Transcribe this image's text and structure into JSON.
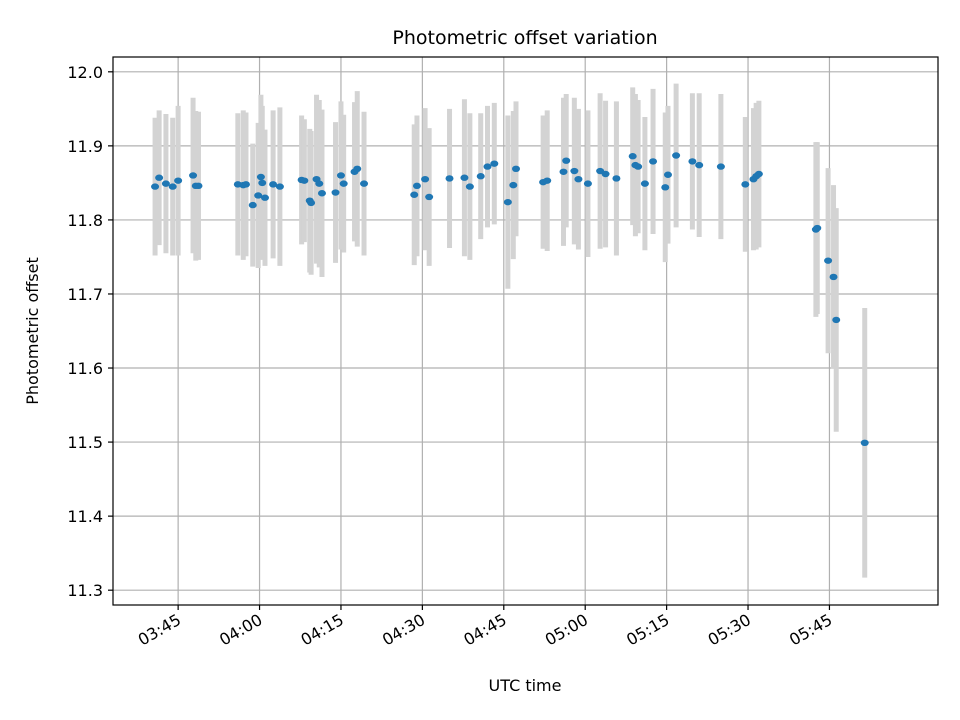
{
  "chart_data": {
    "type": "scatter",
    "title": "Photometric offset variation",
    "xlabel": "UTC time",
    "ylabel": "Photometric offset",
    "ylim": [
      11.28,
      12.02
    ],
    "y_ticks": [
      11.3,
      11.4,
      11.5,
      11.6,
      11.7,
      11.8,
      11.9,
      12.0
    ],
    "y_tick_labels": [
      "11.3",
      "11.4",
      "11.5",
      "11.6",
      "11.7",
      "11.8",
      "11.9",
      "12.0"
    ],
    "xlim": [
      "03:33:00",
      "06:05:00"
    ],
    "x_ticks": [
      "03:45",
      "04:00",
      "04:15",
      "04:30",
      "04:45",
      "05:00",
      "05:15",
      "05:30",
      "05:45"
    ],
    "grid": true,
    "colors": {
      "points": "#1f77b4",
      "errorbars": "#d3d3d3",
      "grid": "#b0b0b0"
    },
    "points": [
      {
        "t": "03:40:45",
        "y": 11.845,
        "err": 0.093
      },
      {
        "t": "03:41:30",
        "y": 11.857,
        "err": 0.091
      },
      {
        "t": "03:42:45",
        "y": 11.849,
        "err": 0.094
      },
      {
        "t": "03:44:00",
        "y": 11.845,
        "err": 0.093
      },
      {
        "t": "03:45:00",
        "y": 11.853,
        "err": 0.101
      },
      {
        "t": "03:47:45",
        "y": 11.86,
        "err": 0.105
      },
      {
        "t": "03:48:15",
        "y": 11.846,
        "err": 0.101
      },
      {
        "t": "03:48:45",
        "y": 11.846,
        "err": 0.1
      },
      {
        "t": "03:56:00",
        "y": 11.848,
        "err": 0.096
      },
      {
        "t": "03:57:00",
        "y": 11.847,
        "err": 0.101
      },
      {
        "t": "03:57:30",
        "y": 11.848,
        "err": 0.097
      },
      {
        "t": "03:58:45",
        "y": 11.82,
        "err": 0.083
      },
      {
        "t": "03:59:45",
        "y": 11.833,
        "err": 0.098
      },
      {
        "t": "04:00:15",
        "y": 11.858,
        "err": 0.111
      },
      {
        "t": "04:00:30",
        "y": 11.85,
        "err": 0.104
      },
      {
        "t": "04:01:00",
        "y": 11.83,
        "err": 0.092
      },
      {
        "t": "04:02:30",
        "y": 11.848,
        "err": 0.1
      },
      {
        "t": "04:03:45",
        "y": 11.845,
        "err": 0.107
      },
      {
        "t": "04:07:45",
        "y": 11.854,
        "err": 0.087
      },
      {
        "t": "04:08:15",
        "y": 11.853,
        "err": 0.083
      },
      {
        "t": "04:09:15",
        "y": 11.826,
        "err": 0.097
      },
      {
        "t": "04:09:30",
        "y": 11.823,
        "err": 0.097
      },
      {
        "t": "04:10:30",
        "y": 11.855,
        "err": 0.114
      },
      {
        "t": "04:11:00",
        "y": 11.849,
        "err": 0.113
      },
      {
        "t": "04:11:30",
        "y": 11.836,
        "err": 0.113
      },
      {
        "t": "04:14:00",
        "y": 11.837,
        "err": 0.095
      },
      {
        "t": "04:15:00",
        "y": 11.86,
        "err": 0.1
      },
      {
        "t": "04:15:30",
        "y": 11.849,
        "err": 0.093
      },
      {
        "t": "04:17:30",
        "y": 11.865,
        "err": 0.094
      },
      {
        "t": "04:18:00",
        "y": 11.869,
        "err": 0.105
      },
      {
        "t": "04:19:15",
        "y": 11.849,
        "err": 0.097
      },
      {
        "t": "04:28:30",
        "y": 11.834,
        "err": 0.095
      },
      {
        "t": "04:29:00",
        "y": 11.846,
        "err": 0.095
      },
      {
        "t": "04:30:30",
        "y": 11.855,
        "err": 0.096
      },
      {
        "t": "04:31:15",
        "y": 11.831,
        "err": 0.093
      },
      {
        "t": "04:35:00",
        "y": 11.856,
        "err": 0.094
      },
      {
        "t": "04:37:45",
        "y": 11.857,
        "err": 0.106
      },
      {
        "t": "04:38:45",
        "y": 11.845,
        "err": 0.099
      },
      {
        "t": "04:40:45",
        "y": 11.859,
        "err": 0.085
      },
      {
        "t": "04:42:00",
        "y": 11.872,
        "err": 0.082
      },
      {
        "t": "04:43:15",
        "y": 11.876,
        "err": 0.082
      },
      {
        "t": "04:45:45",
        "y": 11.824,
        "err": 0.117
      },
      {
        "t": "04:46:45",
        "y": 11.847,
        "err": 0.1
      },
      {
        "t": "04:47:15",
        "y": 11.869,
        "err": 0.091
      },
      {
        "t": "04:52:15",
        "y": 11.851,
        "err": 0.09
      },
      {
        "t": "04:53:00",
        "y": 11.853,
        "err": 0.095
      },
      {
        "t": "04:56:00",
        "y": 11.865,
        "err": 0.1
      },
      {
        "t": "04:56:30",
        "y": 11.88,
        "err": 0.09
      },
      {
        "t": "04:58:00",
        "y": 11.866,
        "err": 0.099
      },
      {
        "t": "04:58:45",
        "y": 11.855,
        "err": 0.095
      },
      {
        "t": "05:00:30",
        "y": 11.849,
        "err": 0.099
      },
      {
        "t": "05:02:45",
        "y": 11.866,
        "err": 0.105
      },
      {
        "t": "05:03:45",
        "y": 11.862,
        "err": 0.099
      },
      {
        "t": "05:05:45",
        "y": 11.856,
        "err": 0.104
      },
      {
        "t": "05:08:45",
        "y": 11.886,
        "err": 0.093
      },
      {
        "t": "05:09:15",
        "y": 11.874,
        "err": 0.096
      },
      {
        "t": "05:09:45",
        "y": 11.872,
        "err": 0.09
      },
      {
        "t": "05:11:00",
        "y": 11.849,
        "err": 0.09
      },
      {
        "t": "05:12:30",
        "y": 11.879,
        "err": 0.098
      },
      {
        "t": "05:14:45",
        "y": 11.844,
        "err": 0.101
      },
      {
        "t": "05:15:15",
        "y": 11.861,
        "err": 0.093
      },
      {
        "t": "05:16:45",
        "y": 11.887,
        "err": 0.097
      },
      {
        "t": "05:19:45",
        "y": 11.879,
        "err": 0.092
      },
      {
        "t": "05:21:00",
        "y": 11.874,
        "err": 0.097
      },
      {
        "t": "05:25:00",
        "y": 11.872,
        "err": 0.098
      },
      {
        "t": "05:29:30",
        "y": 11.848,
        "err": 0.091
      },
      {
        "t": "05:31:00",
        "y": 11.855,
        "err": 0.096
      },
      {
        "t": "05:31:30",
        "y": 11.859,
        "err": 0.099
      },
      {
        "t": "05:32:00",
        "y": 11.862,
        "err": 0.099
      },
      {
        "t": "05:42:30",
        "y": 11.787,
        "err": 0.118
      },
      {
        "t": "05:42:45",
        "y": 11.789,
        "err": 0.116
      },
      {
        "t": "05:44:45",
        "y": 11.745,
        "err": 0.125
      },
      {
        "t": "05:45:45",
        "y": 11.723,
        "err": 0.124
      },
      {
        "t": "05:46:15",
        "y": 11.665,
        "err": 0.151
      },
      {
        "t": "05:51:30",
        "y": 11.499,
        "err": 0.182
      }
    ]
  }
}
